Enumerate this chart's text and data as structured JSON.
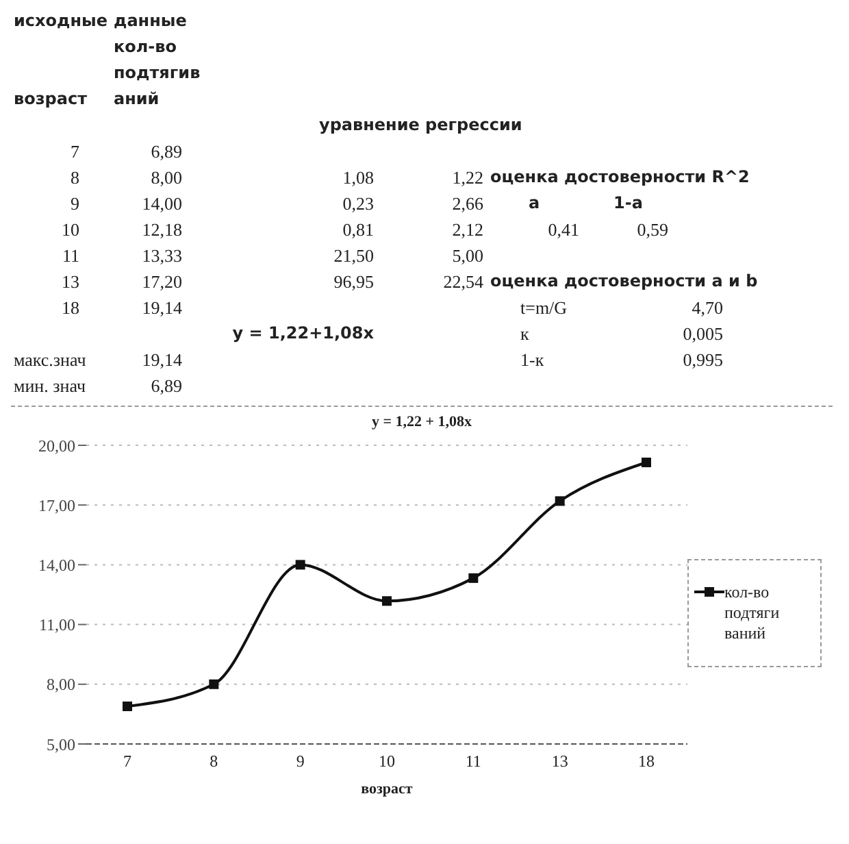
{
  "chart_data": {
    "type": "line",
    "title": "y = 1,22 + 1,08x",
    "xlabel": "возраст",
    "categories": [
      "7",
      "8",
      "9",
      "10",
      "11",
      "13",
      "18"
    ],
    "series": [
      {
        "name": "кол-во подтяги ваний",
        "color": "#111111",
        "values": [
          6.89,
          8.0,
          14.0,
          12.18,
          13.33,
          17.2,
          19.14
        ]
      }
    ],
    "ylim": [
      5,
      20
    ],
    "yticks": [
      {
        "value": 5,
        "label": "5,00"
      },
      {
        "value": 8,
        "label": "8,00"
      },
      {
        "value": 11,
        "label": "11,00"
      },
      {
        "value": 14,
        "label": "14,00"
      },
      {
        "value": 17,
        "label": "17,00"
      },
      {
        "value": 20,
        "label": "20,00"
      }
    ],
    "grid": "y",
    "legend": "right",
    "marker": "square",
    "line_style": "solid",
    "annotations": [
      "исходные",
      "данные",
      "кол-во",
      "подтягив",
      "возраст",
      "аний",
      "уравнение регрессии",
      "7",
      "6,89",
      "8",
      "8,00",
      "1,08",
      "1,22",
      "оценка достоверности R^2",
      "9",
      "14,00",
      "0,23",
      "2,66",
      "а",
      "1-а",
      "10",
      "12,18",
      "0,81",
      "2,12",
      "0,41",
      "0,59",
      "11",
      "13,33",
      "21,50",
      "5,00",
      "13",
      "17,20",
      "96,95",
      "22,54",
      "оценка достоверности a и b",
      "18",
      "19,14",
      "t=m/G",
      "4,70",
      "y = 1,22+1,08x",
      "к",
      "0,005",
      "макс.знач",
      "19,14",
      "1-к",
      "0,995",
      "мин. знач",
      "6,89"
    ]
  }
}
